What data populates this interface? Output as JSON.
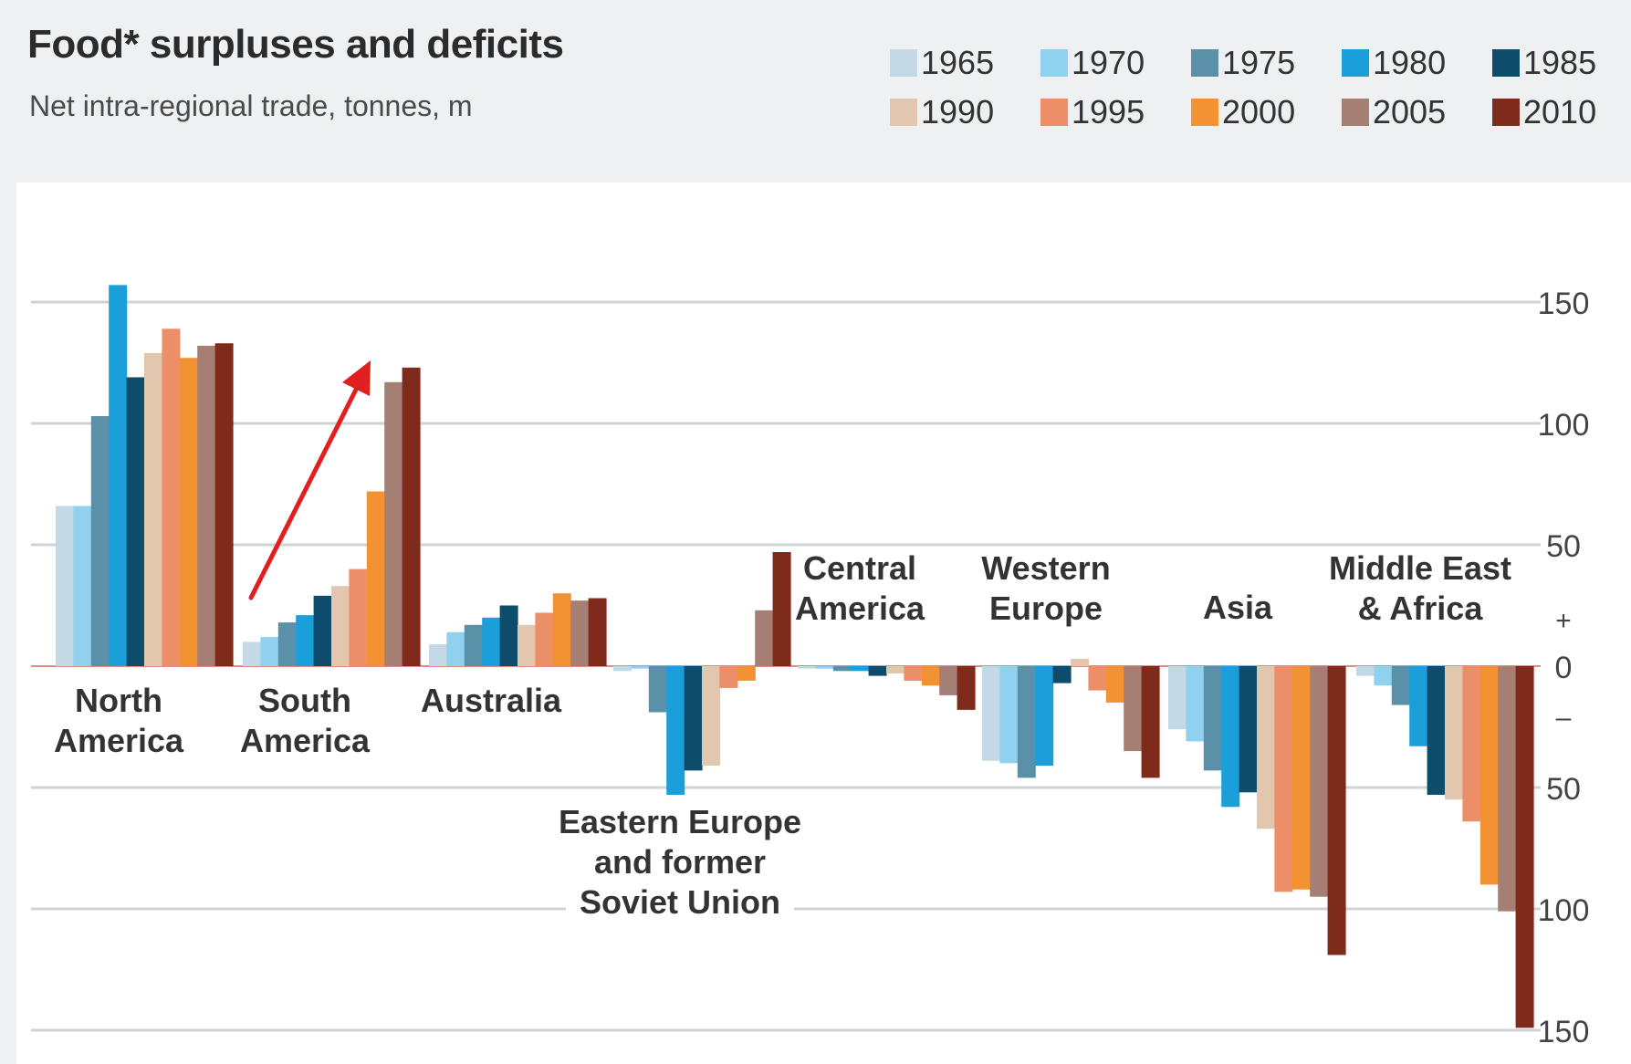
{
  "chart_data": {
    "type": "bar",
    "title": "Food* surpluses and deficits",
    "subtitle": "Net intra-regional trade, tonnes, m",
    "xlabel": "",
    "ylabel": "",
    "ylim": [
      -150,
      175
    ],
    "grid": true,
    "legend_position": "top-right",
    "y_ticks": [
      {
        "value": 150,
        "label": "150"
      },
      {
        "value": 100,
        "label": "100"
      },
      {
        "value": 50,
        "label": "50"
      },
      {
        "value": 20,
        "label": "+"
      },
      {
        "value": 0,
        "label": "0"
      },
      {
        "value": -20,
        "label": "–"
      },
      {
        "value": -50,
        "label": "50"
      },
      {
        "value": -100,
        "label": "100"
      },
      {
        "value": -150,
        "label": "150"
      }
    ],
    "series": [
      {
        "name": "1965",
        "color": "#c3d9e6"
      },
      {
        "name": "1970",
        "color": "#8fd1ef"
      },
      {
        "name": "1975",
        "color": "#5a90a8"
      },
      {
        "name": "1980",
        "color": "#1a9fdb"
      },
      {
        "name": "1985",
        "color": "#0e4c6b"
      },
      {
        "name": "1990",
        "color": "#e3c6ae"
      },
      {
        "name": "1995",
        "color": "#ec8f68"
      },
      {
        "name": "2000",
        "color": "#f39233"
      },
      {
        "name": "2005",
        "color": "#a67f74"
      },
      {
        "name": "2010",
        "color": "#7f2b1b"
      }
    ],
    "categories": [
      {
        "label": [
          "North",
          "America"
        ],
        "values": [
          66,
          66,
          103,
          157,
          119,
          129,
          139,
          127,
          132,
          133
        ]
      },
      {
        "label": [
          "South",
          "America"
        ],
        "values": [
          10,
          12,
          18,
          21,
          29,
          33,
          40,
          72,
          117,
          123
        ]
      },
      {
        "label": [
          "Australia"
        ],
        "values": [
          9,
          14,
          17,
          20,
          25,
          17,
          22,
          30,
          27,
          28
        ]
      },
      {
        "label": [
          "Eastern Europe",
          "and former",
          "Soviet Union"
        ],
        "values": [
          -2,
          -1,
          -19,
          -53,
          -43,
          -41,
          -9,
          -6,
          23,
          47
        ]
      },
      {
        "label": [
          "Central",
          "America"
        ],
        "values": [
          -1,
          -1,
          -2,
          -2,
          -4,
          -3,
          -6,
          -8,
          -12,
          -18
        ]
      },
      {
        "label": [
          "Western",
          "Europe"
        ],
        "values": [
          -39,
          -40,
          -46,
          -41,
          -7,
          3,
          -10,
          -15,
          -35,
          -46
        ]
      },
      {
        "label": [
          "Asia"
        ],
        "values": [
          -26,
          -31,
          -43,
          -58,
          -52,
          -67,
          -93,
          -92,
          -95,
          -119
        ]
      },
      {
        "label": [
          "Middle East",
          "& Africa"
        ],
        "values": [
          -4,
          -8,
          -16,
          -33,
          -53,
          -55,
          -64,
          -90,
          -101,
          -149
        ]
      }
    ]
  }
}
